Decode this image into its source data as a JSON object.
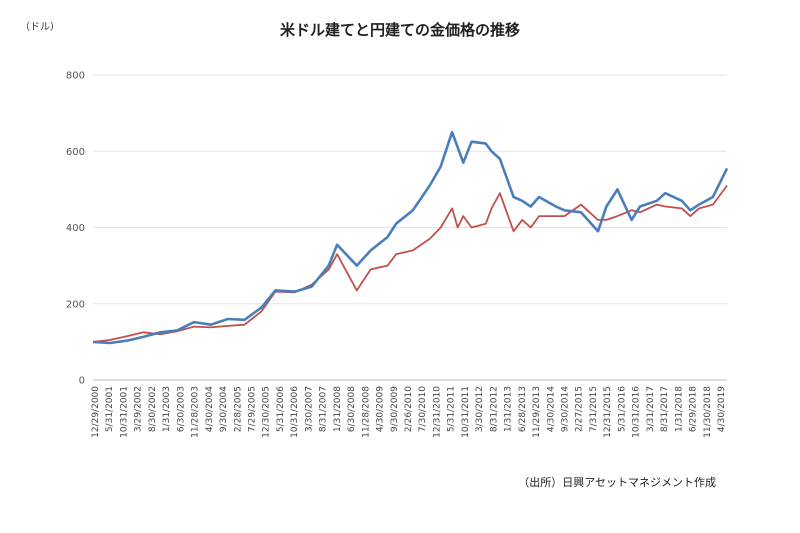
{
  "chart_data": {
    "type": "line",
    "title": "米ドル建てと円建ての金価格の推移",
    "unit_label": "（ドル）",
    "source": "（出所）日興アセットマネジメント作成",
    "ylim": [
      0,
      800
    ],
    "yticks": [
      0,
      200,
      400,
      600,
      800
    ],
    "grid": true,
    "xlim": [
      "12/29/2000",
      "10/31/2019"
    ],
    "x_tick_labels": [
      "12/29/2000",
      "5/31/2001",
      "10/31/2001",
      "3/29/2002",
      "8/30/2002",
      "1/31/2003",
      "6/30/2003",
      "11/28/2003",
      "4/30/2004",
      "9/30/2004",
      "2/28/2005",
      "7/29/2005",
      "12/30/2005",
      "5/31/2006",
      "10/31/2006",
      "3/30/2007",
      "8/31/2007",
      "1/31/2008",
      "6/30/2008",
      "11/28/2008",
      "4/30/2009",
      "9/30/2009",
      "2/26/2010",
      "7/30/2010",
      "12/31/2010",
      "5/31/2011",
      "10/31/2011",
      "3/30/2012",
      "8/31/2012",
      "1/31/2013",
      "6/28/2013",
      "11/29/2013",
      "4/30/2014",
      "9/30/2014",
      "2/27/2015",
      "7/31/2015",
      "12/31/2015",
      "5/31/2016",
      "10/31/2016",
      "3/31/2017",
      "8/31/2017",
      "1/31/2018",
      "6/29/2018",
      "11/30/2018",
      "4/30/2019"
    ],
    "colors": {
      "usd": "#4a7ebb",
      "jpy": "#c0504d"
    },
    "series": [
      {
        "key": "usd",
        "x": [
          "12/29/2000",
          "6/29/2001",
          "12/31/2001",
          "6/28/2002",
          "12/31/2002",
          "6/30/2003",
          "12/31/2003",
          "6/30/2004",
          "12/31/2004",
          "6/30/2005",
          "12/30/2005",
          "5/31/2006",
          "12/29/2006",
          "6/29/2007",
          "12/31/2007",
          "3/31/2008",
          "10/31/2008",
          "3/31/2009",
          "9/30/2009",
          "12/31/2009",
          "6/30/2010",
          "12/31/2010",
          "4/29/2011",
          "8/31/2011",
          "10/31/2011",
          "12/30/2011",
          "3/30/2012",
          "8/31/2012",
          "10/31/2012",
          "1/31/2013",
          "6/28/2013",
          "9/30/2013",
          "12/31/2013",
          "3/31/2014",
          "9/30/2014",
          "12/31/2014",
          "6/30/2015",
          "12/31/2015",
          "3/31/2016",
          "7/29/2016",
          "12/30/2016",
          "3/31/2017",
          "9/29/2017",
          "12/29/2017",
          "6/29/2018",
          "9/28/2018",
          "12/31/2018",
          "5/31/2019",
          "10/31/2019"
        ],
        "y": [
          100,
          97,
          103,
          113,
          125,
          130,
          152,
          145,
          160,
          158,
          190,
          235,
          232,
          245,
          300,
          355,
          300,
          340,
          375,
          410,
          445,
          510,
          560,
          650,
          610,
          570,
          625,
          620,
          600,
          580,
          480,
          470,
          455,
          480,
          455,
          445,
          440,
          390,
          455,
          500,
          420,
          455,
          470,
          490,
          470,
          445,
          460,
          480,
          555
        ]
      },
      {
        "key": "jpy",
        "x": [
          "12/29/2000",
          "6/29/2001",
          "12/31/2001",
          "6/28/2002",
          "12/31/2002",
          "6/30/2003",
          "12/31/2003",
          "6/30/2004",
          "12/31/2004",
          "6/30/2005",
          "12/30/2005",
          "5/31/2006",
          "12/29/2006",
          "6/29/2007",
          "12/31/2007",
          "3/31/2008",
          "10/31/2008",
          "3/31/2009",
          "9/30/2009",
          "12/31/2009",
          "6/30/2010",
          "12/31/2010",
          "4/29/2011",
          "8/31/2011",
          "10/31/2011",
          "12/30/2011",
          "3/30/2012",
          "8/31/2012",
          "10/31/2012",
          "1/31/2013",
          "6/28/2013",
          "9/30/2013",
          "12/31/2013",
          "3/31/2014",
          "9/30/2014",
          "12/31/2014",
          "6/30/2015",
          "12/31/2015",
          "3/31/2016",
          "7/29/2016",
          "12/30/2016",
          "3/31/2017",
          "9/29/2017",
          "12/29/2017",
          "6/29/2018",
          "9/28/2018",
          "12/31/2018",
          "5/31/2019",
          "10/31/2019"
        ],
        "y": [
          100,
          105,
          115,
          125,
          120,
          128,
          140,
          138,
          142,
          145,
          180,
          232,
          230,
          250,
          290,
          330,
          235,
          290,
          300,
          330,
          340,
          370,
          400,
          450,
          400,
          430,
          400,
          410,
          450,
          490,
          390,
          420,
          400,
          430,
          430,
          430,
          460,
          420,
          420,
          430,
          445,
          440,
          460,
          455,
          450,
          430,
          450,
          460,
          510
        ]
      }
    ]
  }
}
